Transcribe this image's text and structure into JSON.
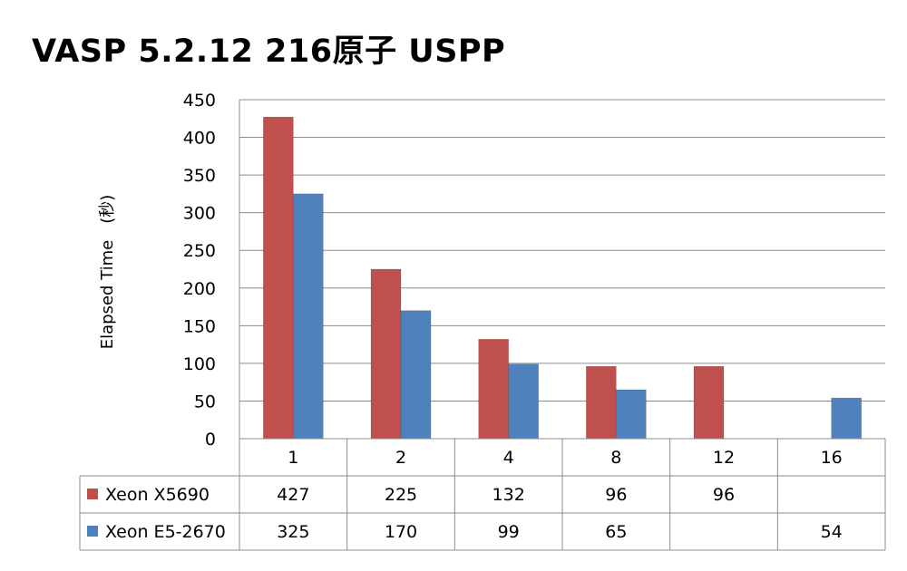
{
  "chart_data": {
    "type": "bar",
    "title": "VASP 5.2.12 216原子 USPP",
    "xlabel": "",
    "ylabel": "Elapsed Time　(秒)",
    "ylim": [
      0,
      450
    ],
    "yticks": [
      0,
      50,
      100,
      150,
      200,
      250,
      300,
      350,
      400,
      450
    ],
    "grid": true,
    "legend": "data-table",
    "categories": [
      "1",
      "2",
      "4",
      "8",
      "12",
      "16"
    ],
    "series": [
      {
        "name": "Xeon X5690",
        "color": "#c0504d",
        "values": [
          427,
          225,
          132,
          96,
          96,
          null
        ]
      },
      {
        "name": "Xeon E5-2670",
        "color": "#4f81bd",
        "values": [
          325,
          170,
          99,
          65,
          null,
          54
        ]
      }
    ]
  }
}
